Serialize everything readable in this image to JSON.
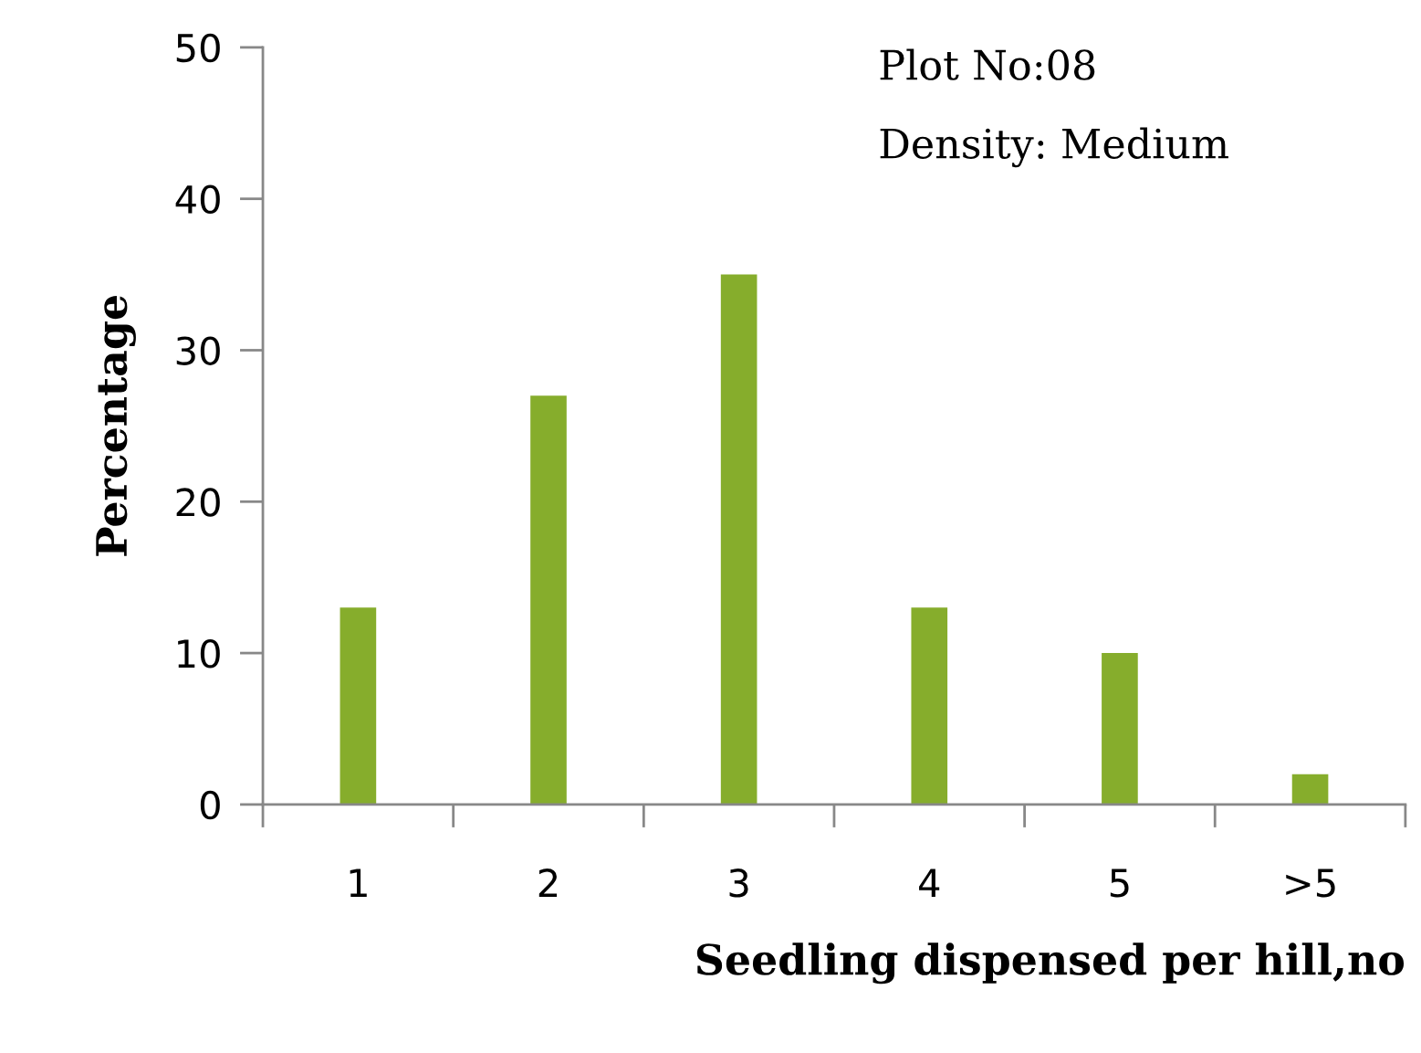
{
  "chart_data": {
    "type": "bar",
    "xlabel": "Seedling dispensed per hill,no",
    "ylabel": "Percentage",
    "categories": [
      "1",
      "2",
      "3",
      "4",
      "5",
      ">5"
    ],
    "values": [
      13,
      27,
      35,
      13,
      10,
      2
    ],
    "color": "#86ad2c",
    "ylim": [
      0,
      50
    ],
    "yticks": [
      0,
      10,
      20,
      30,
      40,
      50
    ],
    "grid": false,
    "annotations": [
      "Plot No:08",
      "Density: Medium"
    ]
  }
}
